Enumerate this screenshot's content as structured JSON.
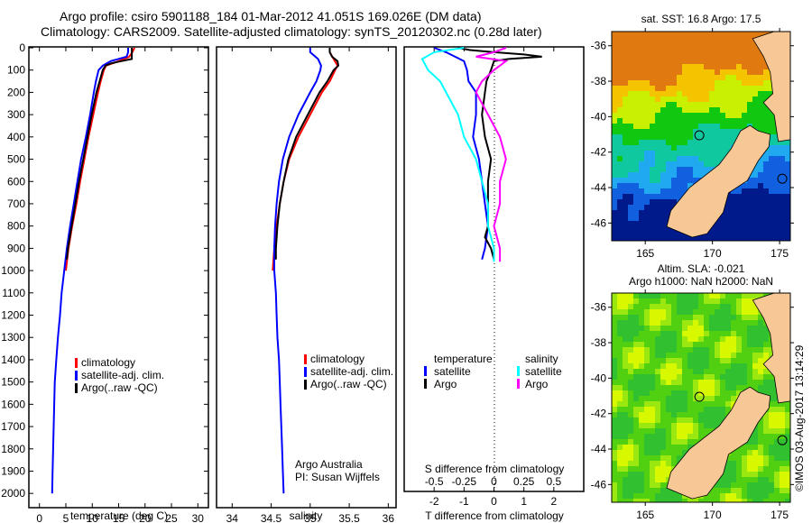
{
  "header": {
    "title_line1": "Argo profile: csiro 5901188_184 01-Mar-2012 41.051S 169.026E (DM data)",
    "title_line2": "Climatology: CARS2009. Satellite-adjusted climatology: synTS_20120302.nc (0.28d later)"
  },
  "stamp": "©IMOS 03-Aug-2017 13:14:29",
  "colors": {
    "climatology": "#ff0000",
    "satellite": "#0000ff",
    "argo": "#000000",
    "sal_satellite": "#00ffff",
    "sal_argo": "#ff00ff",
    "land": "#f7c896"
  },
  "chart_data": [
    {
      "id": "temperature",
      "type": "line",
      "title": "",
      "xlabel": "temperature (deg C)",
      "ylabel": "",
      "xlim": [
        -2,
        32
      ],
      "ylim": [
        2060,
        0
      ],
      "xticks": [
        0,
        5,
        10,
        15,
        20,
        25,
        30
      ],
      "yticks": [
        0,
        100,
        200,
        300,
        400,
        500,
        600,
        700,
        800,
        900,
        1000,
        1100,
        1200,
        1300,
        1400,
        1500,
        1600,
        1700,
        1800,
        1900,
        2000
      ],
      "legend": {
        "placement": "center-left",
        "entries": [
          "climatology",
          "satellite-adj. clim.",
          "Argo(..raw -QC)"
        ]
      },
      "series": [
        {
          "name": "climatology",
          "color": "#ff0000",
          "depth": [
            0,
            20,
            40,
            60,
            80,
            100,
            150,
            200,
            300,
            400,
            500,
            600,
            700,
            800,
            900,
            1000
          ],
          "values": [
            18.0,
            17.6,
            17.0,
            15.0,
            12.6,
            12.2,
            11.6,
            11.1,
            10.2,
            9.3,
            8.5,
            7.7,
            7.0,
            6.2,
            5.5,
            5.0
          ]
        },
        {
          "name": "satellite-adj. clim.",
          "color": "#0000ff",
          "depth": [
            0,
            20,
            40,
            60,
            80,
            100,
            150,
            200,
            300,
            400,
            500,
            600,
            700,
            800,
            900,
            1000,
            1100,
            1200,
            1300,
            1400,
            1500,
            1600,
            1700,
            1800,
            1900,
            2000
          ],
          "values": [
            16.8,
            16.8,
            16.5,
            13.5,
            12.0,
            11.2,
            10.7,
            10.3,
            9.6,
            8.8,
            7.9,
            7.2,
            6.5,
            5.8,
            5.2,
            4.7,
            4.2,
            3.9,
            3.5,
            3.2,
            2.9,
            2.8,
            2.7,
            2.6,
            2.5,
            2.4
          ]
        },
        {
          "name": "Argo(..raw -QC)",
          "color": "#000000",
          "depth": [
            0,
            20,
            40,
            50,
            60,
            70,
            80,
            100,
            150,
            200,
            300,
            400,
            500,
            600,
            700,
            800,
            900,
            950
          ],
          "values": [
            17.5,
            17.5,
            17.5,
            17.5,
            15.5,
            13.5,
            12.5,
            12.0,
            11.4,
            10.8,
            9.9,
            9.1,
            8.3,
            7.5,
            6.8,
            6.1,
            5.4,
            5.2
          ]
        }
      ]
    },
    {
      "id": "salinity",
      "type": "line",
      "title": "",
      "xlabel": "salinity",
      "ylabel": "",
      "xlim": [
        33.8,
        36.1
      ],
      "ylim": [
        2060,
        0
      ],
      "xticks": [
        34,
        34.5,
        35,
        35.5,
        36
      ],
      "xtick_labels": [
        "34",
        "34.5",
        "35",
        "35.5",
        "36"
      ],
      "legend": {
        "placement": "center-right",
        "entries": [
          "climatology",
          "satellite-adj. clim.",
          "Argo(..raw -QC)"
        ]
      },
      "annotation": [
        "Argo Australia",
        "PI: Susan Wijffels"
      ],
      "series": [
        {
          "name": "climatology",
          "color": "#ff0000",
          "depth": [
            0,
            20,
            50,
            80,
            100,
            150,
            200,
            300,
            400,
            500,
            600,
            700,
            800,
            900,
            1000
          ],
          "values": [
            35.25,
            35.25,
            35.3,
            35.35,
            35.32,
            35.25,
            35.15,
            35.0,
            34.85,
            34.73,
            34.66,
            34.61,
            34.57,
            34.54,
            34.52
          ]
        },
        {
          "name": "satellite-adj. clim.",
          "color": "#0000ff",
          "depth": [
            0,
            20,
            50,
            80,
            100,
            150,
            200,
            300,
            400,
            500,
            600,
            700,
            800,
            900,
            1000,
            1100,
            1200,
            1300,
            1400,
            1500,
            1600,
            1700,
            1800,
            1900,
            2000
          ],
          "values": [
            35.0,
            35.0,
            35.1,
            35.14,
            35.13,
            35.08,
            35.0,
            34.85,
            34.73,
            34.65,
            34.6,
            34.57,
            34.55,
            34.54,
            34.54,
            34.56,
            34.57,
            34.58,
            34.6,
            34.61,
            34.62,
            34.63,
            34.64,
            34.65,
            34.66
          ]
        },
        {
          "name": "Argo(..raw -QC)",
          "color": "#000000",
          "depth": [
            0,
            20,
            40,
            60,
            80,
            100,
            150,
            200,
            300,
            400,
            500,
            600,
            700,
            800,
            900,
            950
          ],
          "values": [
            35.25,
            35.25,
            35.28,
            35.35,
            35.36,
            35.3,
            35.22,
            35.12,
            34.97,
            34.82,
            34.72,
            34.66,
            34.61,
            34.58,
            34.56,
            34.56
          ]
        }
      ]
    },
    {
      "id": "differences",
      "type": "line",
      "title": "",
      "xlabel": "T difference from climatology",
      "x2label": "S difference from climatology",
      "ylabel": "",
      "xlim": [
        -3,
        3
      ],
      "ylim": [
        2060,
        0
      ],
      "xticks": [
        -2,
        -1,
        0,
        1,
        2
      ],
      "x2ticks": [
        -0.5,
        -0.25,
        0,
        0.25,
        0.5
      ],
      "x2tick_labels": [
        "-0.5",
        "-0.25",
        "0",
        "0.25",
        "0.5"
      ],
      "legend": {
        "placement": "center",
        "groups": [
          {
            "title": "temperature",
            "entries": [
              "satellite",
              "Argo"
            ]
          },
          {
            "title": "salinity",
            "entries": [
              "satellite",
              "Argo"
            ]
          }
        ]
      },
      "series": [
        {
          "name": "temperature satellite",
          "color": "#0000ff",
          "depth": [
            0,
            20,
            40,
            60,
            100,
            150,
            200,
            300,
            400,
            500,
            600,
            700,
            800,
            900,
            950
          ],
          "values": [
            -2.0,
            -1.6,
            -1.3,
            -1.0,
            -0.9,
            -0.85,
            -0.6,
            -0.6,
            -0.7,
            -0.5,
            -0.4,
            -0.3,
            -0.2,
            -0.3,
            -0.4
          ]
        },
        {
          "name": "temperature Argo",
          "color": "#000000",
          "depth": [
            0,
            10,
            20,
            30,
            40,
            50,
            60,
            80,
            100,
            150,
            200,
            300,
            400,
            500,
            600,
            700,
            800,
            850,
            900,
            950
          ],
          "values": [
            -1.2,
            -0.8,
            0.0,
            1.0,
            1.6,
            0.5,
            0.0,
            -0.05,
            -0.1,
            -0.25,
            -0.3,
            -0.4,
            -0.3,
            -0.1,
            -0.2,
            -0.2,
            -0.2,
            -0.3,
            -0.1,
            0.0
          ]
        },
        {
          "name": "salinity satellite",
          "color": "#00ffff",
          "depth": [
            0,
            20,
            50,
            100,
            150,
            200,
            300,
            400,
            500,
            600,
            700,
            800,
            900,
            960
          ],
          "values": [
            -0.25,
            -0.5,
            -0.6,
            -0.55,
            -0.45,
            -0.4,
            -0.3,
            -0.25,
            -0.15,
            -0.1,
            -0.05,
            -0.05,
            0.0,
            0.0
          ]
        },
        {
          "name": "salinity Argo",
          "color": "#ff00ff",
          "depth": [
            0,
            20,
            40,
            60,
            100,
            150,
            200,
            300,
            400,
            500,
            600,
            700,
            800,
            900,
            960
          ],
          "values": [
            0.1,
            0.0,
            -0.15,
            0.1,
            0.0,
            -0.1,
            -0.15,
            -0.05,
            0.05,
            0.1,
            0.05,
            0.05,
            0.0,
            0.05,
            0.05
          ]
        }
      ]
    },
    {
      "id": "sst-map",
      "type": "heatmap",
      "title": "sat. SST: 16.8 Argo: 17.5",
      "xlim": [
        162.5,
        175.8
      ],
      "ylim": [
        -47,
        -35.2
      ],
      "xticks": [
        165,
        170,
        175
      ],
      "yticks": [
        -36,
        -38,
        -40,
        -42,
        -44,
        -46
      ],
      "argo_position": {
        "lon": 169.026,
        "lat": -41.051
      }
    },
    {
      "id": "sla-map",
      "type": "heatmap",
      "title": "Altim. SLA: -0.021",
      "subtitle": "Argo h1000: NaN h2000: NaN",
      "xlim": [
        162.5,
        175.8
      ],
      "ylim": [
        -47,
        -35.2
      ],
      "xticks": [
        165,
        170,
        175
      ],
      "yticks": [
        -36,
        -38,
        -40,
        -42,
        -44,
        -46
      ],
      "argo_position": {
        "lon": 169.026,
        "lat": -41.051
      }
    }
  ]
}
